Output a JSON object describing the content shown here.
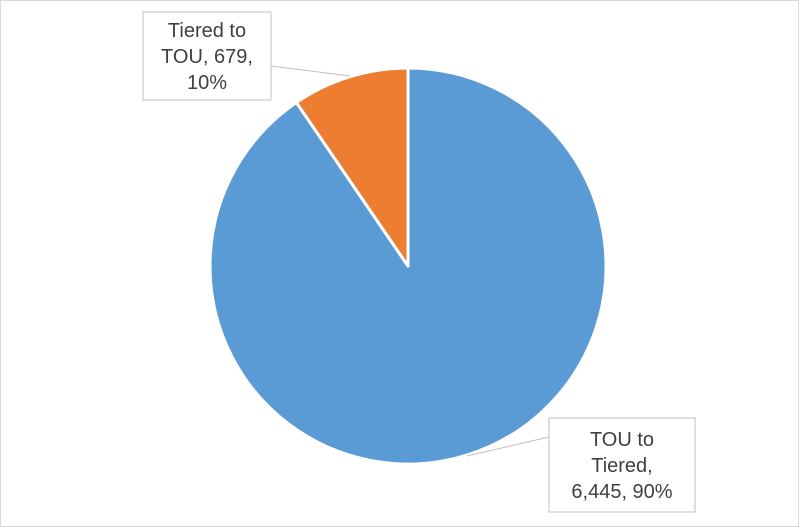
{
  "chart_data": {
    "type": "pie",
    "title": "",
    "slices": [
      {
        "name": "TOU to Tiered",
        "value": 6445,
        "percent": 90,
        "color": "#5b9bd5",
        "label_lines": [
          "TOU to",
          "Tiered,",
          "6,445, 90%"
        ]
      },
      {
        "name": "Tiered to TOU",
        "value": 679,
        "percent": 10,
        "color": "#ed7d31",
        "label_lines": [
          "Tiered to",
          "TOU, 679,",
          "10%"
        ]
      }
    ],
    "legend": "none",
    "start_angle_deg": 0,
    "direction": "counterclockwise"
  }
}
